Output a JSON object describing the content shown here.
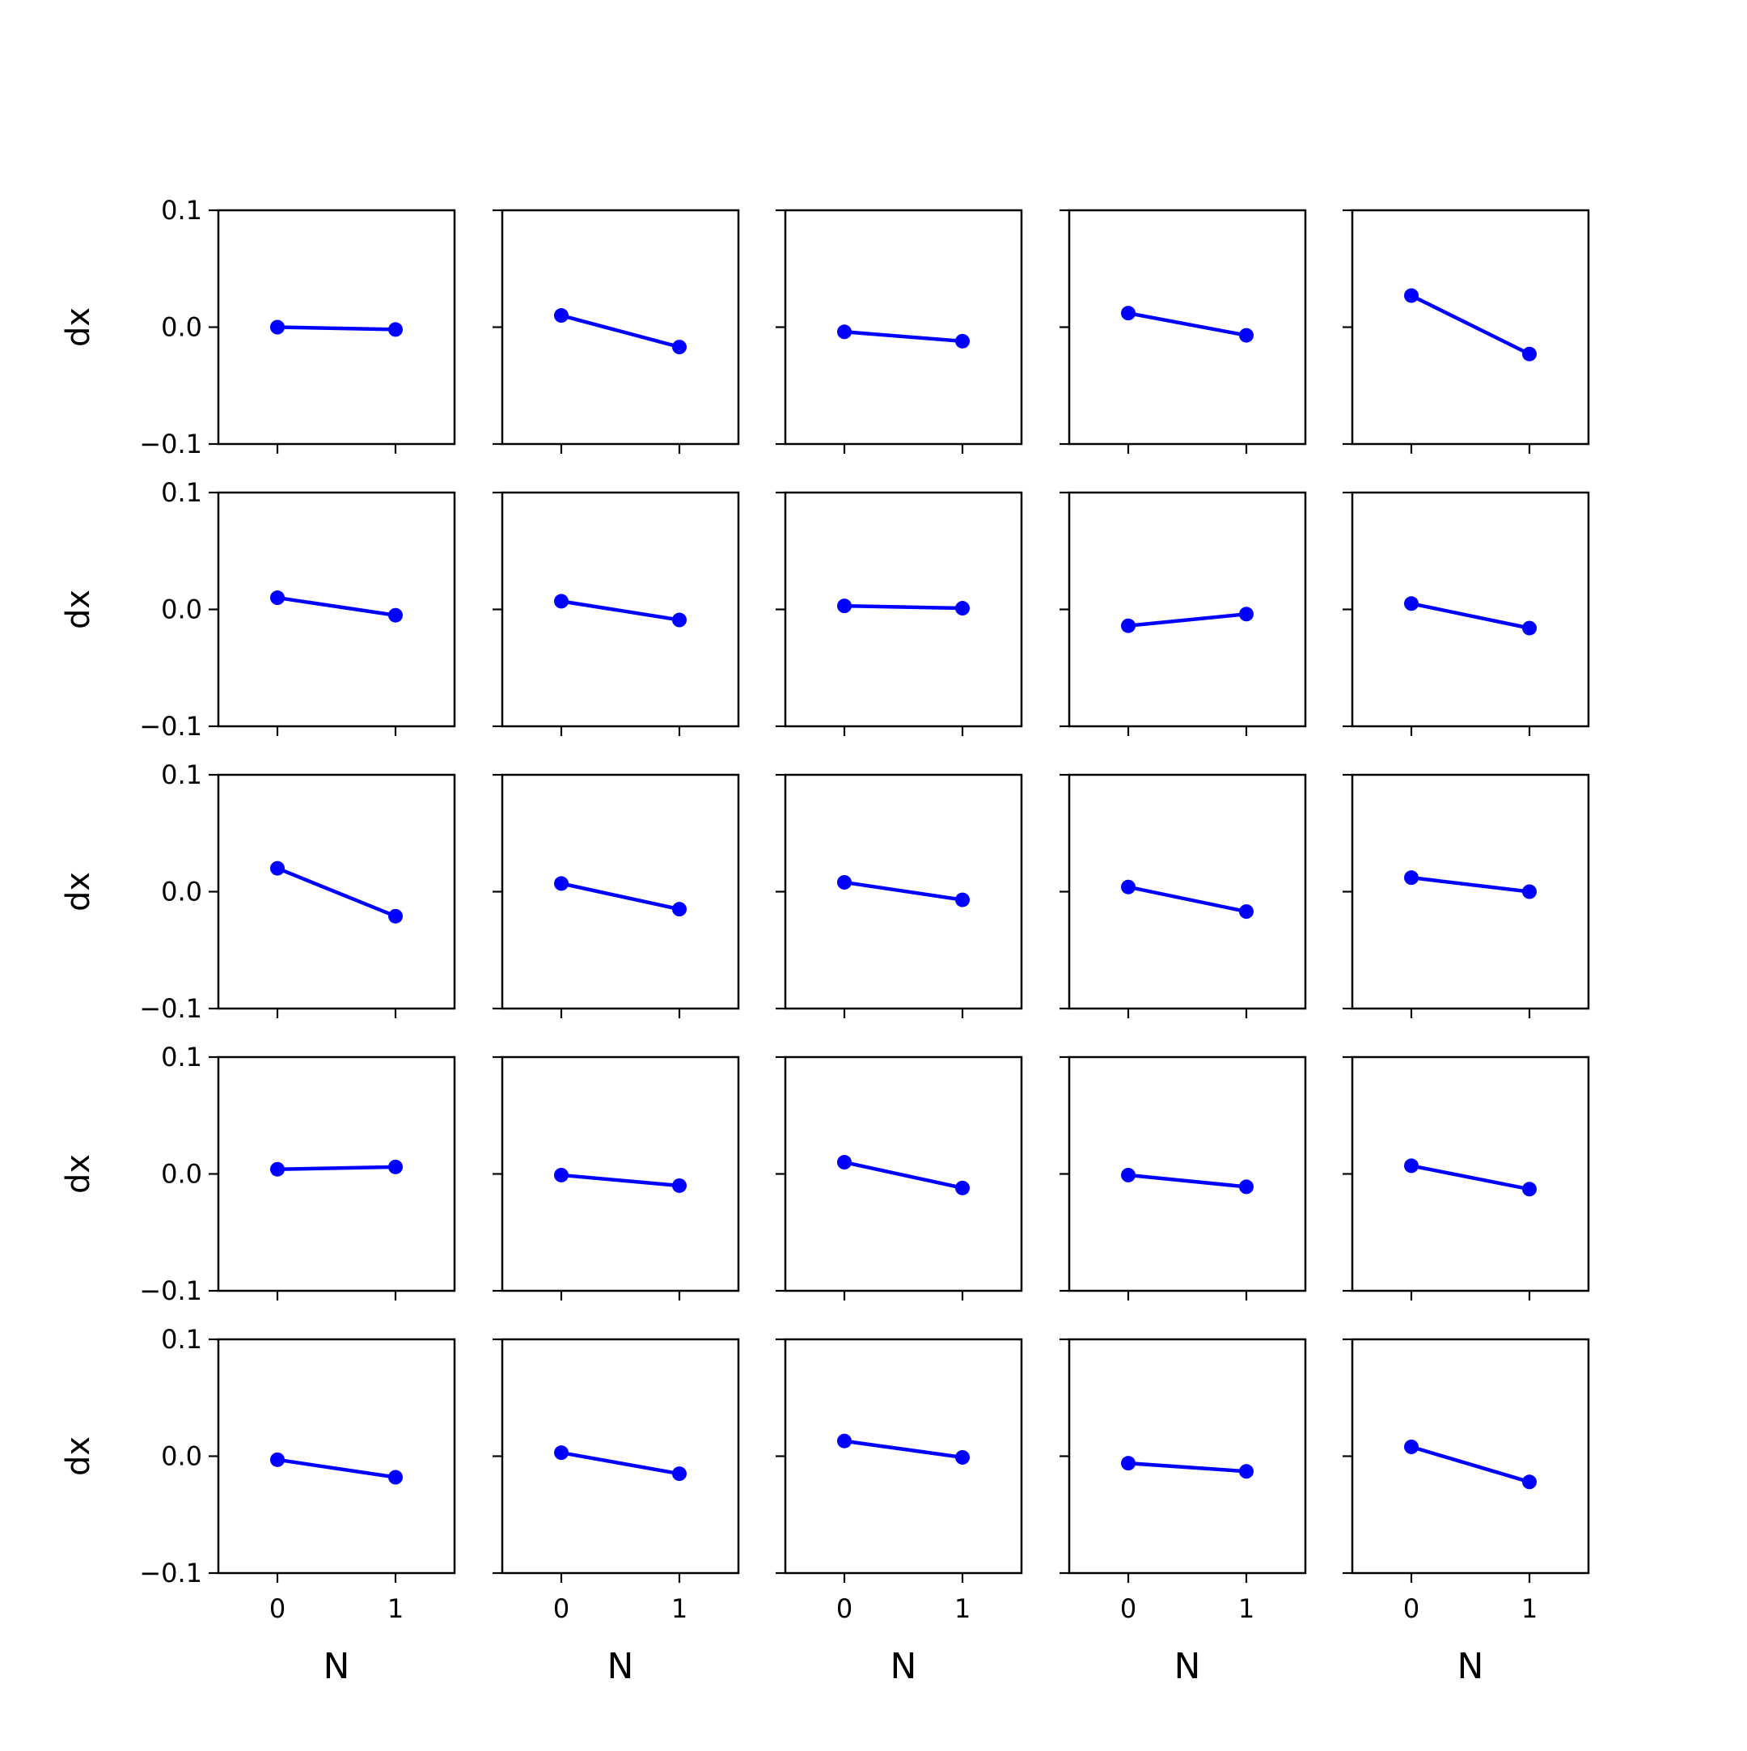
{
  "chart_data": {
    "type": "line",
    "layout": "5x5 grid of small multiples, shared axes",
    "line_color": "#0000ff",
    "xlabel": "N",
    "ylabel": "dx",
    "x": [
      0,
      1
    ],
    "xticks": [
      "0",
      "1"
    ],
    "yticks": [
      "0.1",
      "0.0",
      "−0.1"
    ],
    "xlim": [
      -0.5,
      1.5
    ],
    "ylim": [
      -0.1,
      0.1
    ],
    "grid": false,
    "panels": [
      {
        "row": 1,
        "col": 1,
        "values": [
          0.0,
          -0.002
        ]
      },
      {
        "row": 1,
        "col": 2,
        "values": [
          0.01,
          -0.017
        ]
      },
      {
        "row": 1,
        "col": 3,
        "values": [
          -0.004,
          -0.012
        ]
      },
      {
        "row": 1,
        "col": 4,
        "values": [
          0.012,
          -0.007
        ]
      },
      {
        "row": 1,
        "col": 5,
        "values": [
          0.027,
          -0.023
        ]
      },
      {
        "row": 2,
        "col": 1,
        "values": [
          0.01,
          -0.005
        ]
      },
      {
        "row": 2,
        "col": 2,
        "values": [
          0.007,
          -0.009
        ]
      },
      {
        "row": 2,
        "col": 3,
        "values": [
          0.003,
          0.001
        ]
      },
      {
        "row": 2,
        "col": 4,
        "values": [
          -0.014,
          -0.004
        ]
      },
      {
        "row": 2,
        "col": 5,
        "values": [
          0.005,
          -0.016
        ]
      },
      {
        "row": 3,
        "col": 1,
        "values": [
          0.02,
          -0.021
        ]
      },
      {
        "row": 3,
        "col": 2,
        "values": [
          0.007,
          -0.015
        ]
      },
      {
        "row": 3,
        "col": 3,
        "values": [
          0.008,
          -0.007
        ]
      },
      {
        "row": 3,
        "col": 4,
        "values": [
          0.004,
          -0.017
        ]
      },
      {
        "row": 3,
        "col": 5,
        "values": [
          0.012,
          0.0
        ]
      },
      {
        "row": 4,
        "col": 1,
        "values": [
          0.004,
          0.006
        ]
      },
      {
        "row": 4,
        "col": 2,
        "values": [
          -0.001,
          -0.01
        ]
      },
      {
        "row": 4,
        "col": 3,
        "values": [
          0.01,
          -0.012
        ]
      },
      {
        "row": 4,
        "col": 4,
        "values": [
          -0.001,
          -0.011
        ]
      },
      {
        "row": 4,
        "col": 5,
        "values": [
          0.007,
          -0.013
        ]
      },
      {
        "row": 5,
        "col": 1,
        "values": [
          -0.003,
          -0.018
        ]
      },
      {
        "row": 5,
        "col": 2,
        "values": [
          0.003,
          -0.015
        ]
      },
      {
        "row": 5,
        "col": 3,
        "values": [
          0.013,
          -0.001
        ]
      },
      {
        "row": 5,
        "col": 4,
        "values": [
          -0.006,
          -0.013
        ]
      },
      {
        "row": 5,
        "col": 5,
        "values": [
          0.008,
          -0.022
        ]
      }
    ]
  }
}
